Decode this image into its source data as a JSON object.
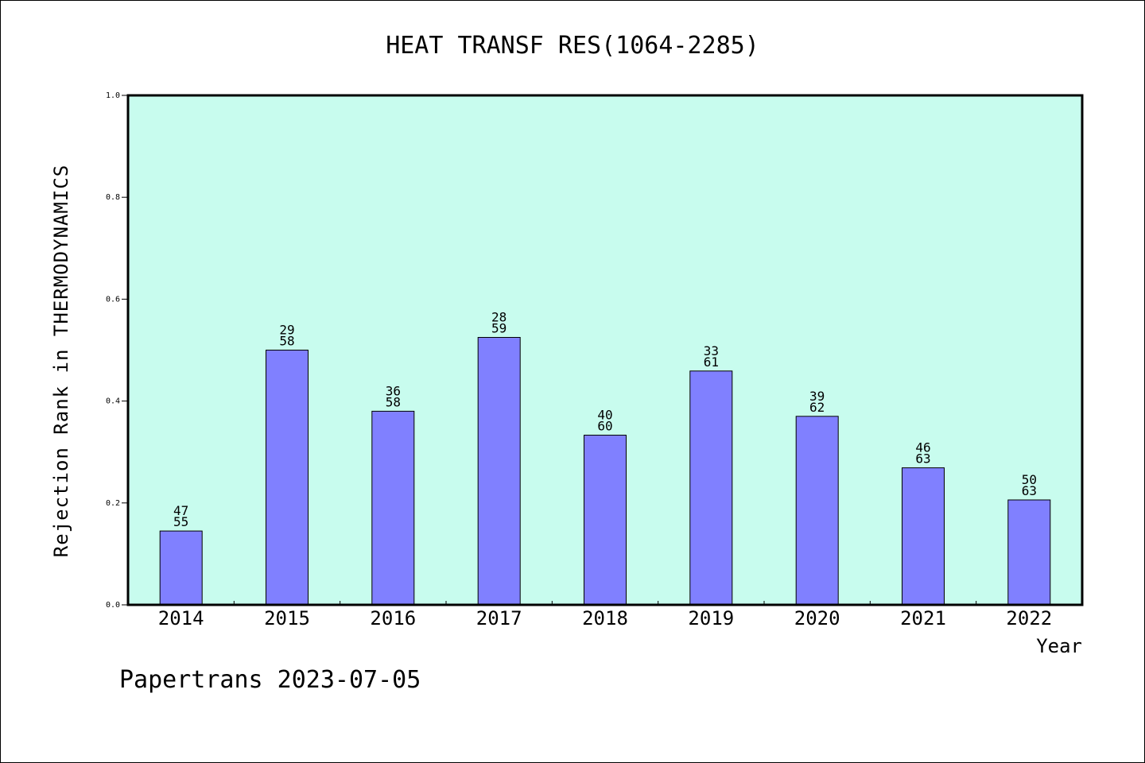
{
  "chart_data": {
    "type": "bar",
    "title": "HEAT TRANSF RES(1064-2285)",
    "xlabel": "Year",
    "ylabel": "Rejection Rank in THERMODYNAMICS",
    "ylim": [
      0,
      1.0
    ],
    "yticks": [
      "0.0",
      "0.2",
      "0.4",
      "0.6",
      "0.8",
      "1.0"
    ],
    "grid": false,
    "categories": [
      "2014",
      "2015",
      "2016",
      "2017",
      "2018",
      "2019",
      "2020",
      "2021",
      "2022"
    ],
    "values": [
      0.145,
      0.5,
      0.38,
      0.525,
      0.333,
      0.459,
      0.37,
      0.269,
      0.206
    ],
    "bar_labels": [
      [
        "47",
        "55"
      ],
      [
        "29",
        "58"
      ],
      [
        "36",
        "58"
      ],
      [
        "28",
        "59"
      ],
      [
        "40",
        "60"
      ],
      [
        "33",
        "61"
      ],
      [
        "39",
        "62"
      ],
      [
        "46",
        "63"
      ],
      [
        "50",
        "63"
      ]
    ],
    "colors": {
      "plot_background": "#c8fcee",
      "bar_fill": "#8080ff",
      "bar_stroke": "#000000"
    }
  },
  "footer": "Papertrans 2023-07-05"
}
